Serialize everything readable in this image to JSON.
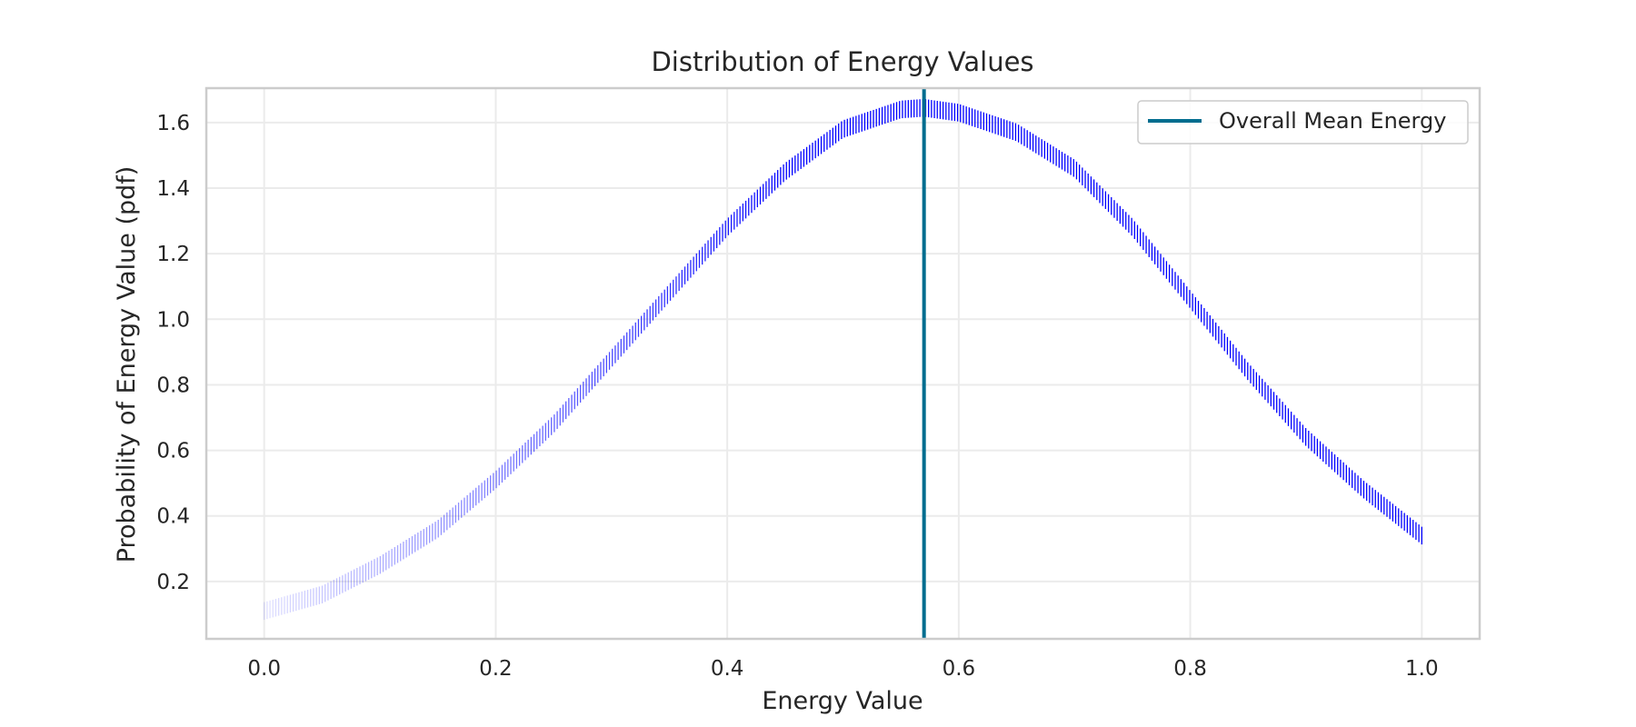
{
  "chart_data": {
    "type": "line",
    "title": "Distribution of Energy Values",
    "xlabel": "Energy Value",
    "ylabel": "Probability of Energy Value (pdf)",
    "xlim": [
      -0.05,
      1.05
    ],
    "ylim": [
      0.025,
      1.705
    ],
    "x_ticks": [
      "0.0",
      "0.2",
      "0.4",
      "0.6",
      "0.8",
      "1.0"
    ],
    "y_ticks": [
      "0.2",
      "0.4",
      "0.6",
      "0.8",
      "1.0",
      "1.2",
      "1.4",
      "1.6"
    ],
    "grid": true,
    "legend_position": "top-right",
    "series": [
      {
        "style": "dense vertical ticks, alpha increasing with x",
        "color": "#0000ff",
        "x": [
          0.0,
          0.05,
          0.1,
          0.15,
          0.2,
          0.25,
          0.3,
          0.35,
          0.4,
          0.45,
          0.5,
          0.55,
          0.57,
          0.6,
          0.65,
          0.7,
          0.75,
          0.8,
          0.85,
          0.9,
          0.95,
          1.0
        ],
        "values": [
          0.11,
          0.16,
          0.25,
          0.36,
          0.51,
          0.68,
          0.88,
          1.08,
          1.28,
          1.45,
          1.58,
          1.64,
          1.645,
          1.63,
          1.57,
          1.46,
          1.28,
          1.06,
          0.84,
          0.64,
          0.48,
          0.34
        ]
      },
      {
        "name": "Overall Mean Energy",
        "style": "vertical line",
        "color": "#006d8f",
        "x": 0.57
      }
    ]
  }
}
